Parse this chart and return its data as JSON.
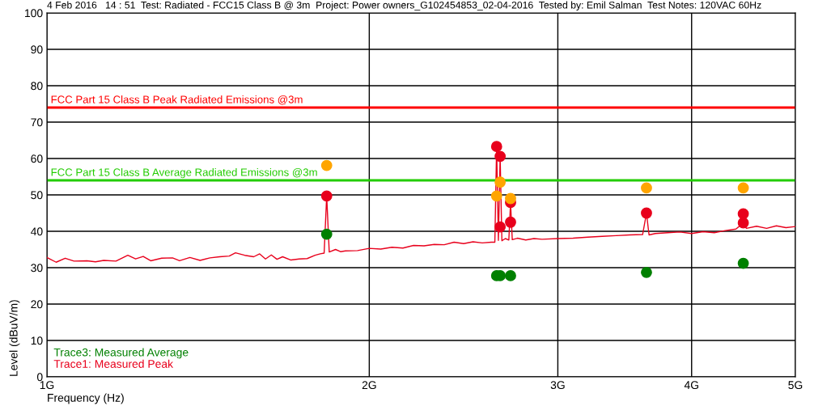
{
  "chart_data": {
    "type": "line",
    "title": "4 Feb 2016   14 : 51  Test: Radiated - FCC15 Class B @ 3m  Project: Power owners_G102454853_02-04-2016  Tested by: Emil Salman  Test Notes: 120VAC 60Hz",
    "xlabel": "Frequency (Hz)",
    "ylabel": "Level (dBuV/m)",
    "log": "x",
    "xlim": [
      1,
      5
    ],
    "xticks": [
      {
        "value": 1,
        "label": "1G"
      },
      {
        "value": 2,
        "label": "2G"
      },
      {
        "value": 3,
        "label": "3G"
      },
      {
        "value": 4,
        "label": "4G"
      },
      {
        "value": 5,
        "label": "5G"
      }
    ],
    "ylim": [
      0,
      100
    ],
    "yticks": [
      0,
      10,
      20,
      30,
      40,
      50,
      60,
      70,
      80,
      90,
      100
    ],
    "grid": true,
    "legend": "bottom left",
    "marker": "none",
    "series": [
      {
        "name": "Trace3: Measured Average",
        "type": "scatter",
        "marker": "circle",
        "color": "#008000",
        "x": [
          1.825,
          2.63,
          2.65,
          2.71,
          3.63,
          4.47
        ],
        "values": [
          39.2,
          27.8,
          27.8,
          27.8,
          28.7,
          31.2
        ]
      },
      {
        "name": "Trace1: Measured Peak",
        "color": "#e8001c",
        "x": [
          1.0,
          1.02,
          1.04,
          1.06,
          1.09,
          1.11,
          1.13,
          1.16,
          1.19,
          1.21,
          1.23,
          1.25,
          1.28,
          1.31,
          1.33,
          1.36,
          1.39,
          1.42,
          1.45,
          1.48,
          1.5,
          1.53,
          1.56,
          1.58,
          1.6,
          1.62,
          1.64,
          1.66,
          1.69,
          1.72,
          1.75,
          1.78,
          1.8,
          1.815,
          1.825,
          1.835,
          1.86,
          1.88,
          1.9,
          1.95,
          2.0,
          2.05,
          2.1,
          2.15,
          2.2,
          2.25,
          2.3,
          2.35,
          2.4,
          2.45,
          2.5,
          2.55,
          2.6,
          2.62,
          2.63,
          2.64,
          2.65,
          2.66,
          2.68,
          2.7,
          2.71,
          2.72,
          2.75,
          2.8,
          2.85,
          2.9,
          3.0,
          3.1,
          3.2,
          3.3,
          3.4,
          3.5,
          3.6,
          3.63,
          3.65,
          3.7,
          3.8,
          3.9,
          4.0,
          4.1,
          4.2,
          4.3,
          4.4,
          4.47,
          4.5,
          4.6,
          4.7,
          4.8,
          4.9,
          5.0
        ],
        "values": [
          32.8,
          31.5,
          32.6,
          31.8,
          31.9,
          31.6,
          32.0,
          31.8,
          33.4,
          32.4,
          33.1,
          31.9,
          32.6,
          32.7,
          31.9,
          32.8,
          32.0,
          32.7,
          33.0,
          33.2,
          34.1,
          33.4,
          33.0,
          33.8,
          32.4,
          33.5,
          32.3,
          33.0,
          32.1,
          32.4,
          32.5,
          33.4,
          33.8,
          34.0,
          49.7,
          34.3,
          35.0,
          34.4,
          34.6,
          34.7,
          35.3,
          35.1,
          35.6,
          35.4,
          36.1,
          36.0,
          36.4,
          36.3,
          37.0,
          36.6,
          37.1,
          36.8,
          37.0,
          37.0,
          63.3,
          37.5,
          60.6,
          37.4,
          38.0,
          37.6,
          47.9,
          37.7,
          38.1,
          37.6,
          38.0,
          37.8,
          38.0,
          38.1,
          38.4,
          38.6,
          38.8,
          39.0,
          39.1,
          45.0,
          39.0,
          39.4,
          39.6,
          39.8,
          39.4,
          39.9,
          39.6,
          40.2,
          40.6,
          42.3,
          40.8,
          41.4,
          40.8,
          41.5,
          41.0,
          41.3
        ]
      },
      {
        "type": "scatter",
        "marker": "circle",
        "color": "#e8001c",
        "x": [
          2.63,
          2.65,
          2.71,
          3.63,
          4.47
        ],
        "values": [
          63.3,
          60.6,
          47.9,
          45.0,
          42.3
        ]
      },
      {
        "type": "scatter",
        "marker": "circle",
        "color": "#e8001c",
        "x": [
          1.825,
          2.65,
          2.71,
          4.47
        ],
        "values": [
          49.7,
          41.2,
          42.5,
          44.8
        ]
      },
      {
        "type": "scatter",
        "marker": "circle",
        "color": "#ffa500",
        "x": [
          1.825,
          2.63,
          2.65,
          2.71,
          3.63,
          4.47
        ],
        "values": [
          58.1,
          49.7,
          53.5,
          49.0,
          51.9,
          51.9
        ]
      }
    ],
    "ref_lines": [
      {
        "axis": "y",
        "value": 74,
        "label": "FCC Part 15 Class B Peak Radiated Emissions @3m",
        "color": "#ff0000"
      },
      {
        "axis": "y",
        "value": 54,
        "label": "FCC Part 15 Class B Average Radiated Emissions @3m",
        "color": "#22cc00"
      }
    ]
  }
}
